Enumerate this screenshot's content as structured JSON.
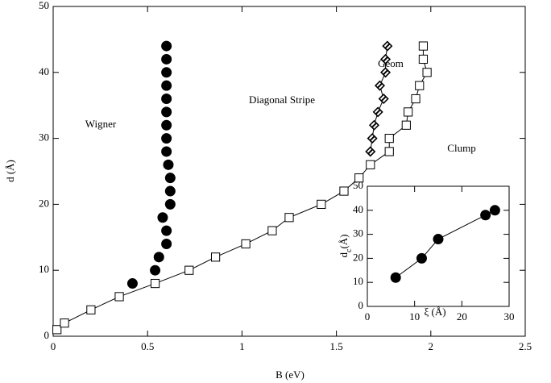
{
  "chart_data": [
    {
      "type": "scatter",
      "xlabel": "B (eV)",
      "ylabel": "d (Å)",
      "xlim": [
        0,
        2.5
      ],
      "xticks": [
        0,
        0.5,
        1,
        1.5,
        2,
        2.5
      ],
      "ylim": [
        0,
        50
      ],
      "yticks": [
        0,
        10,
        20,
        30,
        40,
        50
      ],
      "annotations": [
        "Wigner",
        "Diagonal Stripe",
        "Geom",
        "Clump"
      ],
      "series": [
        {
          "marker": "circle",
          "line": false,
          "color": "#000000",
          "x": [
            0.42,
            0.54,
            0.56,
            0.6,
            0.6,
            0.58,
            0.62,
            0.62,
            0.62,
            0.61,
            0.6,
            0.6,
            0.6,
            0.6,
            0.6,
            0.6,
            0.6,
            0.6,
            0.6
          ],
          "values": [
            8,
            10,
            12,
            14,
            16,
            18,
            20,
            22,
            24,
            26,
            28,
            30,
            32,
            34,
            36,
            38,
            40,
            42,
            44
          ]
        },
        {
          "marker": "square",
          "line": true,
          "color": "#000000",
          "x": [
            0.02,
            0.06,
            0.2,
            0.35,
            0.54,
            0.72,
            0.86,
            1.02,
            1.16,
            1.25,
            1.42,
            1.54,
            1.62,
            1.68,
            1.78,
            1.78,
            1.87,
            1.88,
            1.92,
            1.94,
            1.98,
            1.96,
            1.96
          ],
          "values": [
            1,
            2,
            4,
            6,
            8,
            10,
            12,
            14,
            16,
            18,
            20,
            22,
            24,
            26,
            28,
            30,
            32,
            34,
            36,
            38,
            40,
            42,
            44
          ]
        },
        {
          "marker": "diamond",
          "line": true,
          "color": "#000000",
          "x": [
            1.68,
            1.69,
            1.7,
            1.72,
            1.75,
            1.73,
            1.76,
            1.76,
            1.77
          ],
          "values": [
            28,
            30,
            32,
            34,
            36,
            38,
            40,
            42,
            44
          ]
        }
      ]
    },
    {
      "type": "scatter",
      "xlabel": "ξ (Å)",
      "ylabel": [
        "d",
        "c",
        "(Å)"
      ],
      "xlim": [
        0,
        30
      ],
      "xticks": [
        0,
        10,
        20,
        30
      ],
      "ylim": [
        0,
        50
      ],
      "yticks": [
        0,
        10,
        20,
        30,
        40,
        50
      ],
      "series": [
        {
          "marker": "circle",
          "line": true,
          "color": "#000000",
          "x": [
            6,
            11.5,
            15,
            25,
            27
          ],
          "values": [
            12,
            20,
            28,
            38,
            40
          ]
        }
      ]
    }
  ]
}
